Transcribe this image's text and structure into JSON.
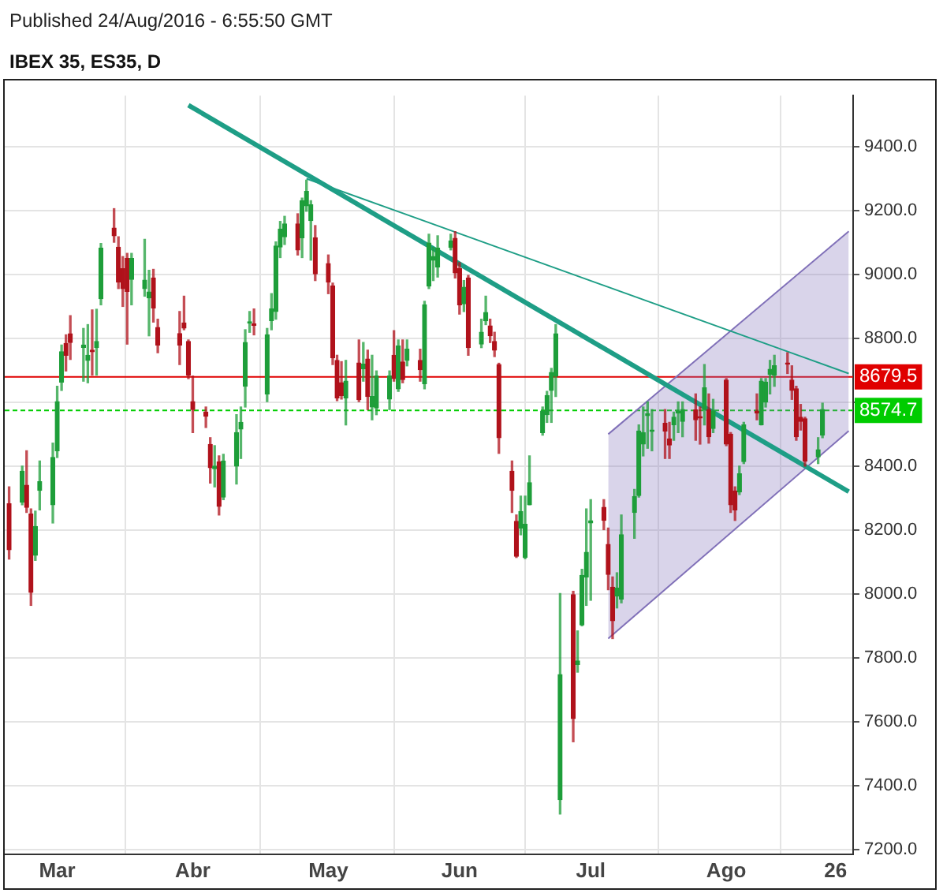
{
  "chart_data": {
    "type": "candlestick",
    "title": "IBEX 35, ES35, D",
    "annotations": [
      "Published 24/Aug/2016 - 6:55:50 GMT"
    ],
    "x": [
      "2016-02-19",
      "2016-02-22",
      "2016-02-23",
      "2016-02-24",
      "2016-02-25",
      "2016-02-26",
      "2016-02-29",
      "2016-03-01",
      "2016-03-02",
      "2016-03-03",
      "2016-03-04",
      "2016-03-07",
      "2016-03-08",
      "2016-03-09",
      "2016-03-10",
      "2016-03-11",
      "2016-03-14",
      "2016-03-15",
      "2016-03-16",
      "2016-03-17",
      "2016-03-18",
      "2016-03-21",
      "2016-03-22",
      "2016-03-23",
      "2016-03-24",
      "2016-03-29",
      "2016-03-30",
      "2016-03-31",
      "2016-04-01",
      "2016-04-04",
      "2016-04-05",
      "2016-04-06",
      "2016-04-07",
      "2016-04-08",
      "2016-04-11",
      "2016-04-12",
      "2016-04-13",
      "2016-04-14",
      "2016-04-15",
      "2016-04-18",
      "2016-04-19",
      "2016-04-20",
      "2016-04-21",
      "2016-04-22",
      "2016-04-25",
      "2016-04-26",
      "2016-04-27",
      "2016-04-28",
      "2016-04-29",
      "2016-05-02",
      "2016-05-03",
      "2016-05-04",
      "2016-05-05",
      "2016-05-06",
      "2016-05-09",
      "2016-05-10",
      "2016-05-11",
      "2016-05-12",
      "2016-05-13",
      "2016-05-16",
      "2016-05-17",
      "2016-05-18",
      "2016-05-19",
      "2016-05-20",
      "2016-05-23",
      "2016-05-24",
      "2016-05-25",
      "2016-05-26",
      "2016-05-27",
      "2016-05-30",
      "2016-05-31",
      "2016-06-01",
      "2016-06-02",
      "2016-06-03",
      "2016-06-06",
      "2016-06-07",
      "2016-06-08",
      "2016-06-09",
      "2016-06-10",
      "2016-06-13",
      "2016-06-14",
      "2016-06-15",
      "2016-06-16",
      "2016-06-17",
      "2016-06-20",
      "2016-06-21",
      "2016-06-22",
      "2016-06-23",
      "2016-06-24",
      "2016-06-27",
      "2016-06-28",
      "2016-06-29",
      "2016-06-30",
      "2016-07-01",
      "2016-07-04",
      "2016-07-05",
      "2016-07-06",
      "2016-07-07",
      "2016-07-08",
      "2016-07-11",
      "2016-07-12",
      "2016-07-13",
      "2016-07-14",
      "2016-07-15",
      "2016-07-18",
      "2016-07-19",
      "2016-07-20",
      "2016-07-21",
      "2016-07-22",
      "2016-07-25",
      "2016-07-26",
      "2016-07-27",
      "2016-07-28",
      "2016-07-29",
      "2016-08-01",
      "2016-08-02",
      "2016-08-03",
      "2016-08-04",
      "2016-08-05",
      "2016-08-08",
      "2016-08-09",
      "2016-08-10",
      "2016-08-11",
      "2016-08-12",
      "2016-08-15",
      "2016-08-16",
      "2016-08-17",
      "2016-08-18",
      "2016-08-19",
      "2016-08-22",
      "2016-08-23"
    ],
    "ohlc": [
      [
        8282,
        8335,
        8109,
        8138
      ],
      [
        8287,
        8400,
        8279,
        8384
      ],
      [
        8340,
        8448,
        8255,
        8271
      ],
      [
        8250,
        8266,
        7964,
        8005
      ],
      [
        8121,
        8259,
        8105,
        8211
      ],
      [
        8324,
        8416,
        8263,
        8351
      ],
      [
        8279,
        8472,
        8222,
        8427
      ],
      [
        8448,
        8650,
        8427,
        8602
      ],
      [
        8663,
        8779,
        8637,
        8758
      ],
      [
        8784,
        8811,
        8698,
        8747
      ],
      [
        8814,
        8871,
        8734,
        8787
      ],
      [
        8772,
        8831,
        8666,
        8779
      ],
      [
        8731,
        8843,
        8661,
        8747
      ],
      [
        8763,
        8889,
        8685,
        8758
      ],
      [
        8771,
        8891,
        8685,
        8790
      ],
      [
        8924,
        9097,
        8905,
        9082
      ],
      [
        9145,
        9206,
        9101,
        9121
      ],
      [
        9085,
        9118,
        8956,
        8976
      ],
      [
        9018,
        9056,
        8900,
        8956
      ],
      [
        9050,
        9066,
        8782,
        8947
      ],
      [
        8985,
        9066,
        8905,
        9050
      ],
      [
        8956,
        9110,
        8932,
        8982
      ],
      [
        8927,
        9013,
        8808,
        8945
      ],
      [
        8989,
        9016,
        8851,
        8895
      ],
      [
        8834,
        8860,
        8755,
        8779
      ],
      [
        8815,
        8884,
        8718,
        8779
      ],
      [
        8848,
        8932,
        8827,
        8832
      ],
      [
        8790,
        8795,
        8674,
        8685
      ],
      [
        8602,
        8682,
        8505,
        8577
      ],
      [
        8569,
        8585,
        8521,
        8556
      ],
      [
        8468,
        8489,
        8347,
        8395
      ],
      [
        8392,
        8464,
        8335,
        8400
      ],
      [
        8413,
        8432,
        8247,
        8274
      ],
      [
        8303,
        8437,
        8295,
        8416
      ],
      [
        8400,
        8561,
        8344,
        8505
      ],
      [
        8516,
        8585,
        8424,
        8537
      ],
      [
        8650,
        8827,
        8585,
        8787
      ],
      [
        8848,
        8884,
        8819,
        8852
      ],
      [
        8845,
        8892,
        8811,
        8841
      ],
      [
        8626,
        8831,
        8602,
        8811
      ],
      [
        8856,
        8940,
        8827,
        8892
      ],
      [
        8884,
        9102,
        8860,
        9089
      ],
      [
        9086,
        9166,
        9053,
        9142
      ],
      [
        9118,
        9182,
        9094,
        9158
      ],
      [
        9158,
        9190,
        9061,
        9077
      ],
      [
        9115,
        9239,
        9053,
        9231
      ],
      [
        9215,
        9295,
        9198,
        9260
      ],
      [
        9169,
        9231,
        9045,
        9218
      ],
      [
        9115,
        9153,
        8981,
        9002
      ],
      [
        9034,
        9061,
        8940,
        8976
      ],
      [
        8964,
        8973,
        8718,
        8739
      ],
      [
        8731,
        8747,
        8605,
        8614
      ],
      [
        8661,
        8727,
        8610,
        8621
      ],
      [
        8614,
        8731,
        8529,
        8666
      ],
      [
        8723,
        8795,
        8602,
        8608
      ],
      [
        8705,
        8787,
        8666,
        8719
      ],
      [
        8735,
        8763,
        8577,
        8618
      ],
      [
        8585,
        8747,
        8545,
        8618
      ],
      [
        8582,
        8698,
        8561,
        8682
      ],
      [
        8610,
        8698,
        8577,
        8682
      ],
      [
        8747,
        8824,
        8666,
        8674
      ],
      [
        8642,
        8795,
        8634,
        8776
      ],
      [
        8726,
        8795,
        8661,
        8671
      ],
      [
        8731,
        8795,
        8714,
        8766
      ],
      [
        8731,
        8766,
        8666,
        8702
      ],
      [
        8658,
        8916,
        8642,
        8905
      ],
      [
        8964,
        9126,
        8956,
        9098
      ],
      [
        9045,
        9085,
        8981,
        9056
      ],
      [
        9024,
        9121,
        8992,
        9082
      ],
      [
        9085,
        9126,
        9077,
        9105
      ],
      [
        9113,
        9134,
        8989,
        9005
      ],
      [
        9018,
        9037,
        8876,
        8905
      ],
      [
        8908,
        8981,
        8884,
        8960
      ],
      [
        8989,
        8997,
        8747,
        8771
      ],
      [
        8782,
        8860,
        8771,
        8819
      ],
      [
        8855,
        8932,
        8843,
        8881
      ],
      [
        8839,
        8860,
        8787,
        8808
      ],
      [
        8790,
        8819,
        8743,
        8763
      ],
      [
        8718,
        8722,
        8440,
        8489
      ],
      [
        8384,
        8416,
        8255,
        8324
      ],
      [
        8227,
        8247,
        8114,
        8118
      ],
      [
        8206,
        8306,
        8185,
        8258
      ],
      [
        8114,
        8306,
        8110,
        8218
      ],
      [
        8279,
        8432,
        8279,
        8348
      ],
      [
        8505,
        8585,
        8497,
        8572
      ],
      [
        8561,
        8634,
        8537,
        8621
      ],
      [
        8637,
        8706,
        8537,
        8693
      ],
      [
        8682,
        8843,
        8618,
        8814
      ],
      [
        7356,
        8001,
        7311,
        7747
      ],
      [
        7997,
        8008,
        7537,
        7610
      ],
      [
        7779,
        7884,
        7755,
        7790
      ],
      [
        7903,
        8077,
        7900,
        8058
      ],
      [
        8053,
        8266,
        7964,
        8130
      ],
      [
        8222,
        8295,
        7980,
        8229
      ],
      [
        8271,
        8295,
        8201,
        8230
      ],
      [
        8155,
        8206,
        8013,
        8061
      ],
      [
        8021,
        8053,
        7860,
        7916
      ],
      [
        7993,
        8066,
        7956,
        8018
      ],
      [
        7984,
        8247,
        7972,
        8185
      ],
      [
        8255,
        8327,
        8174,
        8305
      ],
      [
        8308,
        8529,
        8303,
        8510
      ],
      [
        8469,
        8585,
        8432,
        8505
      ],
      [
        8558,
        8601,
        8456,
        8564
      ],
      [
        8509,
        8577,
        8448,
        8513
      ],
      [
        8534,
        8577,
        8424,
        8510
      ],
      [
        8485,
        8537,
        8424,
        8466
      ],
      [
        8530,
        8569,
        8481,
        8553
      ],
      [
        8566,
        8601,
        8505,
        8572
      ],
      [
        8540,
        8601,
        8492,
        8577
      ],
      [
        8576,
        8626,
        8481,
        8545
      ],
      [
        8555,
        8585,
        8469,
        8551
      ],
      [
        8577,
        8718,
        8529,
        8645
      ],
      [
        8576,
        8626,
        8472,
        8492
      ],
      [
        8518,
        8609,
        8505,
        8572
      ],
      [
        8669,
        8674,
        8464,
        8469
      ],
      [
        8500,
        8505,
        8255,
        8279
      ],
      [
        8322,
        8335,
        8230,
        8263
      ],
      [
        8319,
        8400,
        8311,
        8376
      ],
      [
        8414,
        8537,
        8408,
        8529
      ],
      [
        8572,
        8626,
        8545,
        8566
      ],
      [
        8530,
        8674,
        8529,
        8666
      ],
      [
        8601,
        8674,
        8585,
        8663
      ],
      [
        8687,
        8731,
        8626,
        8703
      ],
      [
        8685,
        8747,
        8650,
        8714
      ],
      [
        8723,
        8755,
        8690,
        8719
      ],
      [
        8669,
        8714,
        8609,
        8637
      ],
      [
        8642,
        8650,
        8481,
        8492
      ],
      [
        8553,
        8593,
        8513,
        8540
      ],
      [
        8548,
        8553,
        8400,
        8416
      ],
      [
        8429,
        8489,
        8408,
        8451
      ],
      [
        8497,
        8597,
        8489,
        8577
      ]
    ],
    "colors": [
      "#b0121b",
      "#1e9e3a",
      "#b0121b",
      "#b0121b",
      "#1e9e3a",
      "#1e9e3a",
      "#1e9e3a",
      "#1e9e3a",
      "#1e9e3a",
      "#b0121b",
      "#b0121b",
      "#1e9e3a",
      "#1e9e3a",
      "#b0121b",
      "#1e9e3a",
      "#1e9e3a",
      "#b0121b",
      "#b0121b",
      "#b0121b",
      "#b0121b",
      "#1e9e3a",
      "#1e9e3a",
      "#1e9e3a",
      "#b0121b",
      "#b0121b",
      "#b0121b",
      "#b0121b",
      "#b0121b",
      "#b0121b",
      "#b0121b",
      "#b0121b",
      "#1e9e3a",
      "#b0121b",
      "#1e9e3a",
      "#1e9e3a",
      "#1e9e3a",
      "#1e9e3a",
      "#1e9e3a",
      "#b0121b",
      "#1e9e3a",
      "#1e9e3a",
      "#1e9e3a",
      "#1e9e3a",
      "#1e9e3a",
      "#b0121b",
      "#1e9e3a",
      "#1e9e3a",
      "#1e9e3a",
      "#b0121b",
      "#b0121b",
      "#b0121b",
      "#b0121b",
      "#b0121b",
      "#1e9e3a",
      "#b0121b",
      "#1e9e3a",
      "#b0121b",
      "#1e9e3a",
      "#1e9e3a",
      "#1e9e3a",
      "#b0121b",
      "#1e9e3a",
      "#b0121b",
      "#1e9e3a",
      "#b0121b",
      "#1e9e3a",
      "#1e9e3a",
      "#1e9e3a",
      "#1e9e3a",
      "#1e9e3a",
      "#b0121b",
      "#b0121b",
      "#1e9e3a",
      "#b0121b",
      "#1e9e3a",
      "#1e9e3a",
      "#b0121b",
      "#b0121b",
      "#b0121b",
      "#b0121b",
      "#b0121b",
      "#1e9e3a",
      "#1e9e3a",
      "#1e9e3a",
      "#1e9e3a",
      "#1e9e3a",
      "#1e9e3a",
      "#1e9e3a",
      "#1e9e3a",
      "#b0121b",
      "#1e9e3a",
      "#1e9e3a",
      "#1e9e3a",
      "#1e9e3a",
      "#b0121b",
      "#b0121b",
      "#b0121b",
      "#1e9e3a",
      "#1e9e3a",
      "#1e9e3a",
      "#1e9e3a",
      "#1e9e3a",
      "#1e9e3a",
      "#1e9e3a",
      "#b0121b",
      "#b0121b",
      "#1e9e3a",
      "#1e9e3a",
      "#1e9e3a",
      "#b0121b",
      "#b0121b",
      "#1e9e3a",
      "#b0121b",
      "#1e9e3a",
      "#b0121b",
      "#b0121b",
      "#b0121b",
      "#1e9e3a",
      "#1e9e3a",
      "#b0121b",
      "#1e9e3a",
      "#1e9e3a",
      "#1e9e3a",
      "#1e9e3a",
      "#b0121b",
      "#b0121b",
      "#b0121b",
      "#b0121b",
      "#b0121b",
      "#1e9e3a",
      "#1e9e3a"
    ],
    "series": [
      {
        "type": "line",
        "color": "#1e9e86",
        "x": [
          "2016-03-31",
          "2016-08-29"
        ],
        "values": [
          9530,
          8320
        ]
      },
      {
        "type": "line",
        "color": "#1e9e86",
        "x": [
          "2016-04-27",
          "2016-08-29"
        ],
        "values": [
          9300,
          8690
        ]
      },
      {
        "type": "line",
        "color": "#8070b8",
        "x": [
          "2016-07-05",
          "2016-08-29"
        ],
        "values": [
          7860,
          8510
        ]
      },
      {
        "type": "area",
        "color": "#8070b8",
        "x": [
          "2016-07-05",
          "2016-08-29"
        ],
        "values": [
          8500,
          9135
        ]
      }
    ],
    "xlim": [
      "2016-02-18",
      "2016-08-30"
    ],
    "xticks": [
      {
        "value": "2016-03-01",
        "label": "Mar"
      },
      {
        "value": "2016-04-01",
        "label": "Abr"
      },
      {
        "value": "2016-05-02",
        "label": "May"
      },
      {
        "value": "2016-06-01",
        "label": "Jun"
      },
      {
        "value": "2016-07-01",
        "label": "Jul"
      },
      {
        "value": "2016-08-01",
        "label": "Ago"
      },
      {
        "value": "2016-08-26",
        "label": "26"
      }
    ],
    "ylim": [
      7185,
      9560
    ],
    "yticks": [
      {
        "value": 7200,
        "label": "7200.0"
      },
      {
        "value": 7400,
        "label": "7400.0"
      },
      {
        "value": 7600,
        "label": "7600.0"
      },
      {
        "value": 7800,
        "label": "7800.0"
      },
      {
        "value": 8000,
        "label": "8000.0"
      },
      {
        "value": 8200,
        "label": "8200.0"
      },
      {
        "value": 8400,
        "label": "8400.0"
      },
      {
        "value": 8600,
        "label": null
      },
      {
        "value": 8800,
        "label": "8800.0"
      },
      {
        "value": 9000,
        "label": "9000.0"
      },
      {
        "value": 9200,
        "label": "9200.0"
      },
      {
        "value": 9400,
        "label": "9400.0"
      }
    ],
    "ref_lines": [
      {
        "axis": "y",
        "value": 8679.5,
        "label": "8679.5",
        "color": "#e00000",
        "line_style": "solid"
      },
      {
        "axis": "y",
        "value": 8574.7,
        "label": "8574.7",
        "color": "#00cc00",
        "line_style": "dashed"
      }
    ],
    "grid": true
  }
}
